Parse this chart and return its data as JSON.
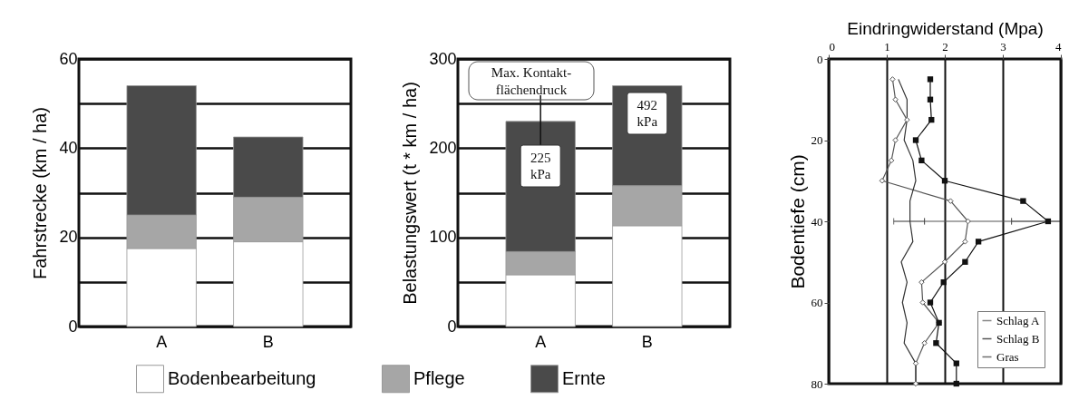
{
  "chart_data": [
    {
      "type": "bar",
      "stacked": true,
      "ylabel": "Fahrstrecke (km / ha)",
      "categories": [
        "A",
        "B"
      ],
      "ylim": [
        0,
        60
      ],
      "yticks": [
        0,
        {
          "value": 10,
          "label": null
        },
        20,
        {
          "value": 30,
          "label": null
        },
        40,
        {
          "value": 50,
          "label": null
        },
        60
      ],
      "grid": "y",
      "legend": "bottom",
      "series": [
        {
          "name": "Bodenbearbeitung",
          "color": "#ffffff",
          "values": [
            17.5,
            19
          ]
        },
        {
          "name": "Pflege",
          "color": "#a6a6a6",
          "values": [
            7.5,
            10
          ]
        },
        {
          "name": "Ernte",
          "color": "#4a4a4a",
          "values": [
            29,
            13.5
          ]
        }
      ]
    },
    {
      "type": "bar",
      "stacked": true,
      "ylabel": "Belastungswert (t * km / ha)",
      "categories": [
        "A",
        "B"
      ],
      "ylim": [
        0,
        300
      ],
      "yticks": [
        0,
        {
          "value": 50,
          "label": null
        },
        100,
        {
          "value": 150,
          "label": null
        },
        200,
        {
          "value": 250,
          "label": null
        },
        300
      ],
      "grid": "y",
      "legend": "bottom",
      "series": [
        {
          "name": "Bodenbearbeitung",
          "color": "#ffffff",
          "values": [
            58,
            113
          ]
        },
        {
          "name": "Pflege",
          "color": "#a6a6a6",
          "values": [
            26,
            45
          ]
        },
        {
          "name": "Ernte",
          "color": "#4a4a4a",
          "values": [
            146,
            112
          ]
        }
      ],
      "annotations": [
        "Max. Kontakt-flächendruck",
        "225 kPa",
        "492 kPa"
      ]
    },
    {
      "type": "line",
      "orientation": "horizontal",
      "xlabel": "Eindringwiderstand (Mpa)",
      "ylabel": "Bodentiefe (cm)",
      "xlim": [
        0,
        4
      ],
      "xticks": [
        0,
        1,
        2,
        3,
        4
      ],
      "ylim": [
        80,
        0
      ],
      "yticks": [
        0,
        20,
        40,
        60,
        80
      ],
      "grid": "x",
      "legend": "bottom right",
      "series": [
        {
          "name": "Schlag A",
          "color": "#555555",
          "marker": "diamond",
          "x": [
            5,
            10,
            15,
            20,
            25,
            30,
            35,
            40,
            45,
            50,
            55,
            60,
            65,
            70,
            75,
            80
          ],
          "values": [
            1.1,
            1.15,
            1.35,
            1.15,
            1.08,
            0.92,
            2.1,
            2.4,
            2.35,
            2.0,
            1.6,
            1.62,
            1.9,
            1.65,
            1.5,
            1.5
          ],
          "errors": [
            null,
            null,
            null,
            null,
            null,
            null,
            null,
            [
              1.65,
              3.15
            ],
            null,
            null,
            null,
            null,
            null,
            null,
            null,
            null
          ]
        },
        {
          "name": "Schlag B",
          "color": "#111111",
          "marker": "square",
          "x": [
            5,
            10,
            15,
            20,
            25,
            30,
            35,
            40,
            45,
            50,
            55,
            60,
            65,
            70,
            75,
            80
          ],
          "values": [
            1.75,
            1.75,
            1.77,
            1.5,
            1.6,
            2.0,
            3.35,
            3.78,
            2.58,
            2.35,
            1.98,
            1.75,
            1.9,
            1.85,
            2.2,
            2.2
          ],
          "errors": [
            null,
            null,
            null,
            null,
            null,
            null,
            null,
            [
              3.15,
              4.0
            ],
            null,
            null,
            null,
            null,
            null,
            null,
            null,
            null
          ]
        },
        {
          "name": "Gras",
          "color": "#333333",
          "marker": "none",
          "x": [
            5,
            10,
            15,
            20,
            25,
            30,
            35,
            40,
            45,
            50,
            55,
            60,
            65,
            70,
            75,
            80
          ],
          "values": [
            1.2,
            1.35,
            1.35,
            1.3,
            1.45,
            1.5,
            1.4,
            1.4,
            1.45,
            1.25,
            1.35,
            1.27,
            1.35,
            1.3,
            1.5,
            1.5
          ],
          "errors": [
            null,
            null,
            null,
            null,
            null,
            null,
            null,
            [
              1.12,
              1.65
            ],
            null,
            null,
            null,
            null,
            null,
            null,
            null,
            null
          ]
        }
      ]
    }
  ]
}
